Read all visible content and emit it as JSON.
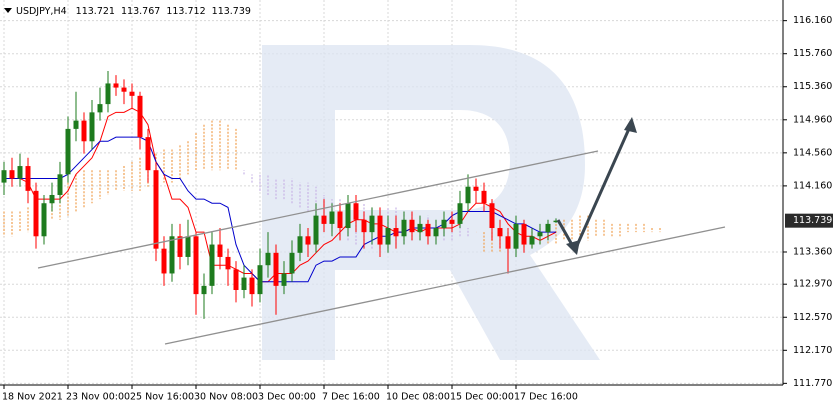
{
  "chart_data": {
    "type": "candlestick",
    "symbol": "USDJPY,H4",
    "categories": [
      "18 Nov 2021",
      null,
      null,
      null,
      null,
      null,
      null,
      null,
      "23 Nov 00:00",
      null,
      null,
      null,
      null,
      null,
      null,
      null,
      "25 Nov 16:00",
      null,
      null,
      null,
      null,
      null,
      null,
      null,
      "30 Nov 08:00",
      null,
      null,
      null,
      null,
      null,
      null,
      null,
      "3 Dec 00:00",
      null,
      null,
      null,
      null,
      null,
      null,
      null,
      "7 Dec 16:00",
      null,
      null,
      null,
      null,
      null,
      null,
      null,
      "10 Dec 08:00",
      null,
      null,
      null,
      null,
      null,
      null,
      null,
      "15 Dec 00:00",
      null,
      null,
      null,
      null,
      null,
      null,
      null,
      "17 Dec 16:00",
      null,
      null,
      null,
      null,
      null
    ],
    "open": [
      114.2,
      114.35,
      114.25,
      114.4,
      114.1,
      113.55,
      113.95,
      114.05,
      114.3,
      114.85,
      114.95,
      114.7,
      115.05,
      115.15,
      115.4,
      115.35,
      115.3,
      115.25,
      114.75,
      114.35,
      113.4,
      113.1,
      113.55,
      113.3,
      113.55,
      112.85,
      112.95,
      113.45,
      113.3,
      113.15,
      112.9,
      113.05,
      112.85,
      113.2,
      113.35,
      112.95,
      113.1,
      113.35,
      113.55,
      113.45,
      113.8,
      113.7,
      113.85,
      113.65,
      113.95,
      113.75,
      113.6,
      113.8,
      113.45,
      113.65,
      113.55,
      113.75,
      113.6,
      113.7,
      113.55,
      113.65,
      113.75,
      113.7,
      113.95,
      114.15,
      114.1,
      113.95,
      113.65,
      113.55,
      113.4,
      113.7,
      113.45,
      113.55,
      113.6,
      113.721
    ],
    "high": [
      114.45,
      114.5,
      114.55,
      114.5,
      114.2,
      114.05,
      114.2,
      114.45,
      115.0,
      115.3,
      115.05,
      115.2,
      115.35,
      115.55,
      115.5,
      115.45,
      115.4,
      115.3,
      114.85,
      114.45,
      113.55,
      113.7,
      113.7,
      113.75,
      113.6,
      113.1,
      113.6,
      113.65,
      113.4,
      113.25,
      113.2,
      113.15,
      113.4,
      113.6,
      113.45,
      113.25,
      113.5,
      113.7,
      113.65,
      113.95,
      114.0,
      113.95,
      113.95,
      114.05,
      114.05,
      113.85,
      113.9,
      113.9,
      113.8,
      113.8,
      113.85,
      113.85,
      113.8,
      113.75,
      113.75,
      113.85,
      113.85,
      114.1,
      114.3,
      114.25,
      114.2,
      114.0,
      113.75,
      113.65,
      113.8,
      113.75,
      113.65,
      113.7,
      113.75,
      113.767
    ],
    "low": [
      114.05,
      114.15,
      114.15,
      113.95,
      113.4,
      113.45,
      113.85,
      113.95,
      114.2,
      114.7,
      114.55,
      114.6,
      114.95,
      115.05,
      115.25,
      115.15,
      115.1,
      114.6,
      114.2,
      113.25,
      112.95,
      113.0,
      113.15,
      113.2,
      112.6,
      112.55,
      112.85,
      113.15,
      112.95,
      112.75,
      112.8,
      112.7,
      112.75,
      113.05,
      112.6,
      112.85,
      113.0,
      113.25,
      113.3,
      113.35,
      113.6,
      113.55,
      113.5,
      113.55,
      113.6,
      113.4,
      113.45,
      113.3,
      113.35,
      113.4,
      113.45,
      113.5,
      113.5,
      113.45,
      113.45,
      113.55,
      113.6,
      113.65,
      113.85,
      113.95,
      113.85,
      113.5,
      113.4,
      113.1,
      113.3,
      113.35,
      113.4,
      113.45,
      113.5,
      113.712
    ],
    "close": [
      114.35,
      114.25,
      114.4,
      114.1,
      113.55,
      113.95,
      114.05,
      114.3,
      114.85,
      114.95,
      114.7,
      115.05,
      115.15,
      115.4,
      115.35,
      115.3,
      115.25,
      114.75,
      114.35,
      113.4,
      113.1,
      113.55,
      113.3,
      113.55,
      112.85,
      112.95,
      113.45,
      113.3,
      113.15,
      112.9,
      113.05,
      112.85,
      113.2,
      113.35,
      112.95,
      113.1,
      113.35,
      113.55,
      113.45,
      113.8,
      113.7,
      113.85,
      113.65,
      113.95,
      113.75,
      113.6,
      113.8,
      113.45,
      113.65,
      113.55,
      113.75,
      113.6,
      113.7,
      113.55,
      113.65,
      113.75,
      113.7,
      113.95,
      114.15,
      114.1,
      113.95,
      113.65,
      113.55,
      113.4,
      113.7,
      113.45,
      113.55,
      113.6,
      113.7,
      113.739
    ],
    "up_color": "#1e7b1e",
    "down_color": "#ff0000",
    "series": [
      {
        "color": "#ff0000",
        "values": [
          114.25,
          114.25,
          114.25,
          114.2,
          114.0,
          114.0,
          114.0,
          114.0,
          114.1,
          114.3,
          114.4,
          114.5,
          114.7,
          115.0,
          115.05,
          115.05,
          115.1,
          115.05,
          114.9,
          114.45,
          114.3,
          114.0,
          114.0,
          113.9,
          113.6,
          113.6,
          113.2,
          113.2,
          113.2,
          113.15,
          113.1,
          113.1,
          113.0,
          113.0,
          113.1,
          113.1,
          113.1,
          113.2,
          113.25,
          113.35,
          113.45,
          113.5,
          113.6,
          113.7,
          113.75,
          113.75,
          113.7,
          113.7,
          113.65,
          113.6,
          113.6,
          113.65,
          113.6,
          113.65,
          113.65,
          113.65,
          113.65,
          113.7,
          113.85,
          113.95,
          113.95,
          113.9,
          113.85,
          113.7,
          113.6,
          113.55,
          113.55,
          113.5,
          113.55,
          113.6
        ]
      },
      {
        "color": "#0000cc",
        "values": [
          114.25,
          114.25,
          114.25,
          114.25,
          114.25,
          114.25,
          114.25,
          114.25,
          114.3,
          114.4,
          114.5,
          114.6,
          114.7,
          114.7,
          114.75,
          114.75,
          114.75,
          114.75,
          114.7,
          114.45,
          114.3,
          114.25,
          114.25,
          114.1,
          114.0,
          114.0,
          113.95,
          113.95,
          113.9,
          113.45,
          113.2,
          113.1,
          113.0,
          113.0,
          113.0,
          113.0,
          113.0,
          113.0,
          113.0,
          113.2,
          113.25,
          113.25,
          113.3,
          113.3,
          113.3,
          113.45,
          113.5,
          113.55,
          113.55,
          113.6,
          113.6,
          113.65,
          113.65,
          113.65,
          113.65,
          113.7,
          113.8,
          113.85,
          113.85,
          113.85,
          113.85,
          113.85,
          113.8,
          113.75,
          113.7,
          113.7,
          113.65,
          113.6,
          113.6,
          113.6
        ]
      }
    ],
    "cloud": {
      "span_a": [
        113.85,
        113.85,
        113.85,
        113.9,
        113.9,
        113.95,
        114.0,
        114.1,
        114.2,
        114.3,
        114.35,
        114.35,
        114.35,
        114.35,
        114.35,
        114.4,
        114.45,
        114.5,
        114.55,
        114.55,
        114.6,
        114.6,
        114.65,
        114.7,
        114.8,
        114.9,
        114.95,
        114.95,
        114.9,
        114.85,
        114.3,
        114.2,
        114.1,
        114.05,
        114.0,
        114.0,
        113.95,
        113.9,
        113.85,
        113.75,
        113.7,
        113.6,
        113.55,
        113.5,
        113.45,
        113.45,
        113.4,
        113.4,
        113.4,
        113.45,
        113.45,
        113.5,
        113.5,
        113.5,
        113.5,
        113.5,
        113.5,
        113.55,
        113.55,
        113.6,
        113.6,
        113.6,
        113.6,
        113.6,
        113.6,
        113.65,
        113.65,
        113.65,
        113.7,
        113.7,
        113.75,
        113.75,
        113.8,
        113.8,
        113.75,
        113.75,
        113.7,
        113.7,
        113.7,
        113.7,
        113.7,
        113.65,
        113.65
      ],
      "span_b": [
        113.55,
        113.55,
        113.6,
        113.6,
        113.65,
        113.7,
        113.75,
        113.75,
        113.8,
        113.85,
        113.9,
        113.95,
        114.0,
        114.05,
        114.1,
        114.1,
        114.1,
        114.1,
        114.15,
        114.15,
        114.2,
        114.2,
        114.25,
        114.3,
        114.35,
        114.35,
        114.35,
        114.35,
        114.35,
        114.35,
        114.35,
        114.3,
        114.3,
        114.3,
        114.25,
        114.25,
        114.25,
        114.2,
        114.2,
        114.15,
        114.05,
        114.0,
        114.0,
        113.95,
        113.95,
        113.95,
        113.9,
        113.9,
        113.9,
        113.9,
        113.85,
        113.85,
        113.8,
        113.8,
        113.75,
        113.75,
        113.7,
        113.7,
        113.65,
        113.6,
        113.35,
        113.35,
        113.35,
        113.4,
        113.4,
        113.4,
        113.4,
        113.45,
        113.45,
        113.45,
        113.5,
        113.5,
        113.5,
        113.5,
        113.55,
        113.55,
        113.55,
        113.55,
        113.6,
        113.6,
        113.6,
        113.6,
        113.6
      ],
      "up_color": "#f0a050",
      "down_color": "#c8b4e6"
    },
    "ylim": [
      111.75,
      116.41
    ],
    "yticks": [
      {
        "value": 116.16,
        "label": "116.160"
      },
      {
        "value": 115.76,
        "label": "115.760"
      },
      {
        "value": 115.36,
        "label": "115.360"
      },
      {
        "value": 114.96,
        "label": "114.960"
      },
      {
        "value": 114.56,
        "label": "114.560"
      },
      {
        "value": 114.16,
        "label": "114.160"
      },
      {
        "value": 113.36,
        "label": "113.360"
      },
      {
        "value": 112.97,
        "label": "112.970"
      },
      {
        "value": 112.57,
        "label": "112.570"
      },
      {
        "value": 112.17,
        "label": "112.170"
      },
      {
        "value": 111.77,
        "label": "111.770"
      }
    ],
    "grid": true
  }
}
